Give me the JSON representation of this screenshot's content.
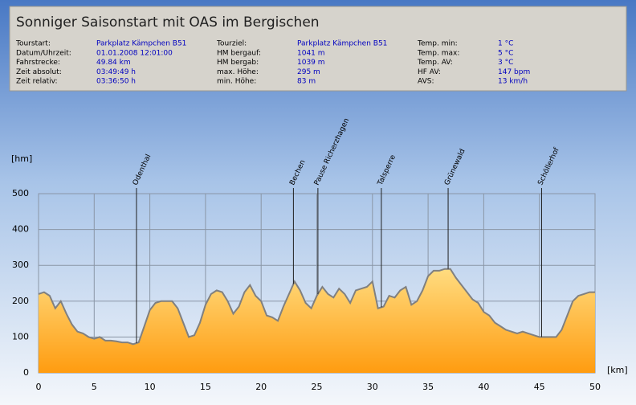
{
  "header": {
    "title": "Sonniger Saisonstart mit OAS im Bergischen",
    "info": [
      {
        "rows": [
          {
            "label": "Tourstart:",
            "value": "Parkplatz Kämpchen B51"
          },
          {
            "label": "Datum/Uhrzeit:",
            "value": "01.01.2008 12:01:00"
          },
          {
            "label": "Fahrstrecke:",
            "value": "49.84 km"
          },
          {
            "label": "Zeit absolut:",
            "value": "03:49:49 h"
          },
          {
            "label": "Zeit relativ:",
            "value": "03:36:50 h"
          }
        ]
      },
      {
        "rows": [
          {
            "label": "Tourziel:",
            "value": "Parkplatz Kämpchen B51"
          },
          {
            "label": "HM bergauf:",
            "value": "1041 m"
          },
          {
            "label": "HM bergab:",
            "value": "1039 m"
          },
          {
            "label": "max. Höhe:",
            "value": "295 m"
          },
          {
            "label": "min. Höhe:",
            "value": "83 m"
          }
        ]
      },
      {
        "rows": [
          {
            "label": "Temp. min:",
            "value": "1 °C"
          },
          {
            "label": "Temp. max:",
            "value": "5 °C"
          },
          {
            "label": "Temp. AV:",
            "value": "3 °C"
          },
          {
            "label": "HF AV:",
            "value": "147 bpm"
          },
          {
            "label": "AVS:",
            "value": "13 km/h"
          }
        ]
      }
    ]
  },
  "chart_data": {
    "type": "area",
    "ylabel": "[hm]",
    "xlabel": "[km]",
    "x": [
      0,
      0.5,
      1,
      1.5,
      2,
      2.5,
      3,
      3.5,
      4,
      4.5,
      5,
      5.5,
      6,
      6.5,
      7,
      7.5,
      8,
      8.5,
      9,
      9.5,
      10,
      10.5,
      11,
      11.5,
      12,
      12.5,
      13,
      13.5,
      14,
      14.5,
      15,
      15.5,
      16,
      16.5,
      17,
      17.5,
      18,
      18.5,
      19,
      19.5,
      20,
      20.5,
      21,
      21.5,
      22,
      22.5,
      23,
      23.5,
      24,
      24.5,
      25,
      25.5,
      26,
      26.5,
      27,
      27.5,
      28,
      28.5,
      29,
      29.5,
      30,
      30.5,
      31,
      31.5,
      32,
      32.5,
      33,
      33.5,
      34,
      34.5,
      35,
      35.5,
      36,
      36.5,
      37,
      37.5,
      38,
      38.5,
      39,
      39.5,
      40,
      40.5,
      41,
      41.5,
      42,
      42.5,
      43,
      43.5,
      44,
      44.5,
      45,
      45.5,
      46,
      46.5,
      47,
      47.5,
      48,
      48.5,
      49,
      49.5,
      50
    ],
    "values": [
      220,
      225,
      215,
      180,
      200,
      165,
      135,
      115,
      110,
      100,
      95,
      100,
      90,
      90,
      88,
      85,
      85,
      80,
      85,
      130,
      175,
      195,
      200,
      200,
      200,
      180,
      140,
      100,
      105,
      140,
      190,
      220,
      230,
      225,
      200,
      165,
      185,
      225,
      245,
      215,
      200,
      160,
      155,
      145,
      185,
      220,
      255,
      230,
      195,
      180,
      215,
      240,
      220,
      210,
      235,
      220,
      195,
      230,
      235,
      240,
      255,
      180,
      185,
      215,
      210,
      230,
      240,
      190,
      200,
      230,
      270,
      285,
      285,
      290,
      290,
      265,
      245,
      225,
      205,
      195,
      170,
      160,
      140,
      130,
      120,
      115,
      110,
      115,
      110,
      105,
      100,
      100,
      100,
      100,
      120,
      160,
      200,
      215,
      220,
      225,
      225
    ],
    "color": "#808080",
    "xlim": [
      0,
      50
    ],
    "xticks": [
      0,
      5,
      10,
      15,
      20,
      25,
      30,
      35,
      40,
      45,
      50
    ],
    "ylim": [
      0,
      500
    ],
    "yticks": [
      0,
      100,
      200,
      300,
      400,
      500
    ],
    "grid": true,
    "markers": [
      {
        "label": "Odenthal",
        "x": 8.8
      },
      {
        "label": "Bechen",
        "x": 22.9
      },
      {
        "label": "Pause Richerzhagen",
        "x": 25.1
      },
      {
        "label": "Talsperre",
        "x": 30.8
      },
      {
        "label": "Grünewald",
        "x": 36.8
      },
      {
        "label": "Schöllerhof",
        "x": 45.2
      }
    ]
  }
}
